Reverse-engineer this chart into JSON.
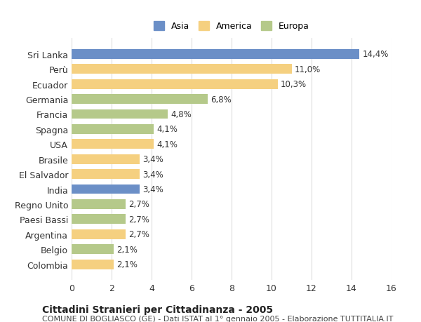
{
  "countries": [
    "Sri Lanka",
    "Perù",
    "Ecuador",
    "Germania",
    "Francia",
    "Spagna",
    "USA",
    "Brasile",
    "El Salvador",
    "India",
    "Regno Unito",
    "Paesi Bassi",
    "Argentina",
    "Belgio",
    "Colombia"
  ],
  "values": [
    14.4,
    11.0,
    10.3,
    6.8,
    4.8,
    4.1,
    4.1,
    3.4,
    3.4,
    3.4,
    2.7,
    2.7,
    2.7,
    2.1,
    2.1
  ],
  "labels": [
    "14,4%",
    "11,0%",
    "10,3%",
    "6,8%",
    "4,8%",
    "4,1%",
    "4,1%",
    "3,4%",
    "3,4%",
    "3,4%",
    "2,7%",
    "2,7%",
    "2,7%",
    "2,1%",
    "2,1%"
  ],
  "categories": [
    "Asia",
    "America",
    "Europa"
  ],
  "bar_colors": [
    "#6b8fc7",
    "#f5d080",
    "#f5d080",
    "#b5c98a",
    "#b5c98a",
    "#b5c98a",
    "#f5d080",
    "#f5d080",
    "#f5d080",
    "#6b8fc7",
    "#b5c98a",
    "#b5c98a",
    "#f5d080",
    "#b5c98a",
    "#f5d080"
  ],
  "legend_colors": {
    "Asia": "#6b8fc7",
    "America": "#f5d080",
    "Europa": "#b5c98a"
  },
  "xlim": [
    0,
    16
  ],
  "xticks": [
    0,
    2,
    4,
    6,
    8,
    10,
    12,
    14,
    16
  ],
  "title": "Cittadini Stranieri per Cittadinanza - 2005",
  "subtitle": "COMUNE DI BOGLIASCO (GE) - Dati ISTAT al 1° gennaio 2005 - Elaborazione TUTTITALIA.IT",
  "background_color": "#ffffff",
  "grid_color": "#dddddd",
  "bar_height": 0.65,
  "label_fontsize": 8.5,
  "title_fontsize": 10,
  "subtitle_fontsize": 8,
  "tick_fontsize": 9
}
